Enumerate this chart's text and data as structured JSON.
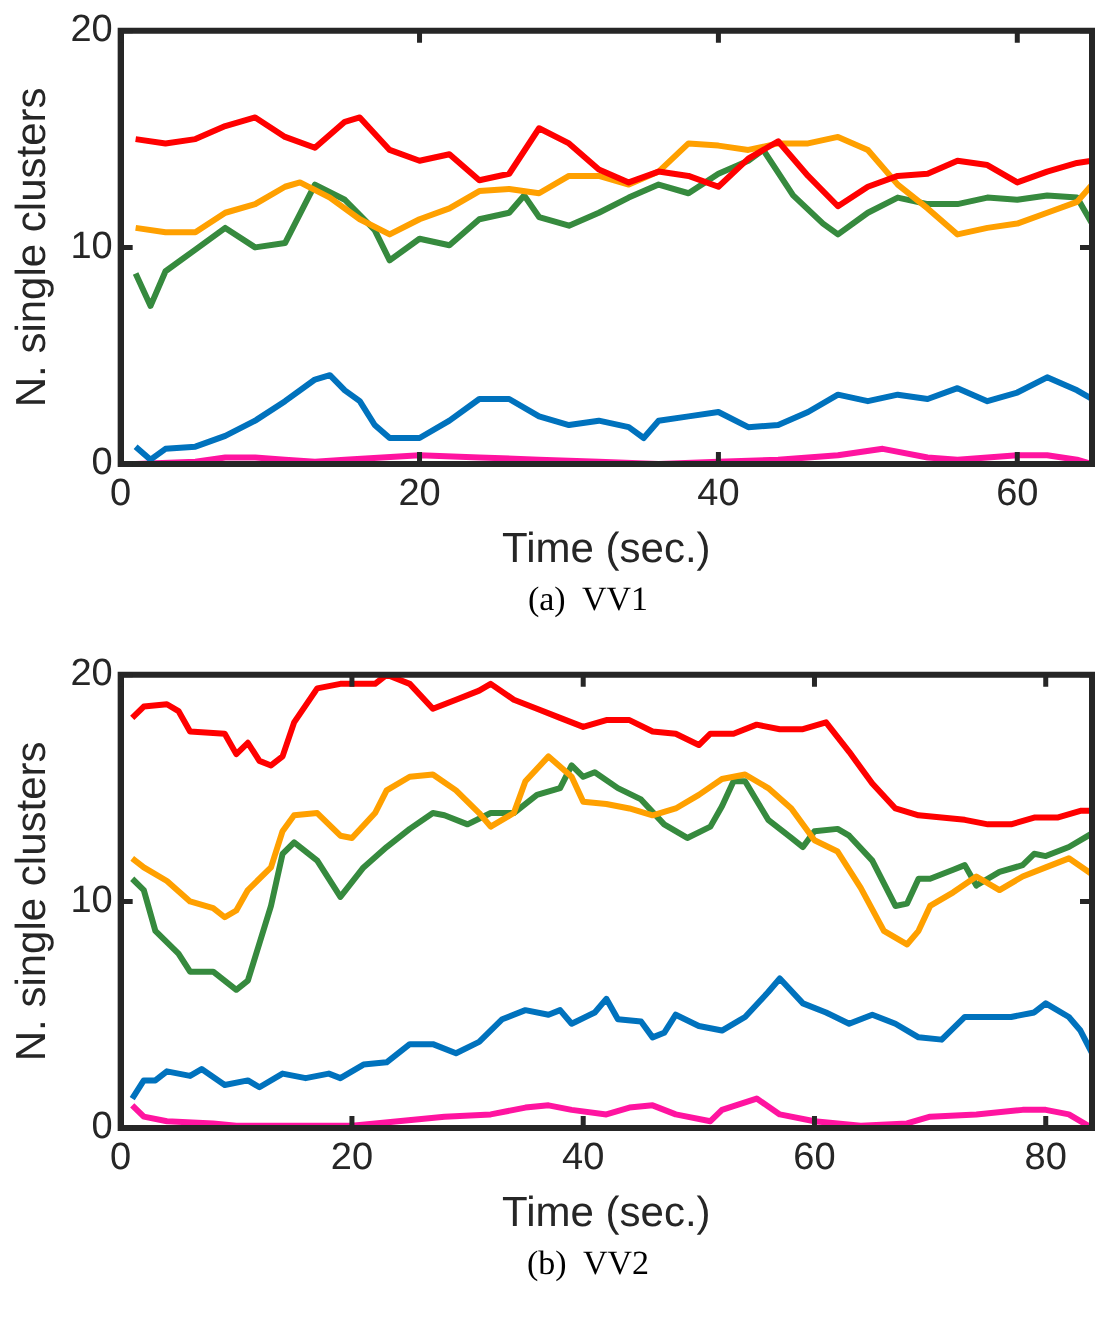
{
  "chart_data": [
    {
      "type": "line",
      "xlabel": "Time (sec.)",
      "ylabel": "N. single clusters",
      "annotations": [
        "(a)  VV1"
      ],
      "xlim": [
        0,
        65
      ],
      "ylim": [
        0,
        20
      ],
      "xticks": [
        0,
        20,
        40,
        60
      ],
      "yticks": [
        0,
        10,
        20
      ],
      "legend": false,
      "marker": "none",
      "line_style": "solid",
      "series": [
        {
          "color": "#ff0000",
          "x": [
            1,
            3,
            5,
            7,
            9,
            11,
            13,
            15,
            16,
            18,
            20,
            22,
            24,
            26,
            28,
            30,
            32,
            34,
            36,
            38,
            40,
            42,
            44,
            46,
            48,
            50,
            52,
            54,
            56,
            58,
            60,
            62,
            64,
            65
          ],
          "values": [
            15.0,
            14.8,
            15.0,
            15.6,
            16.0,
            15.1,
            14.6,
            15.8,
            16.0,
            14.5,
            14.0,
            14.3,
            13.1,
            13.4,
            15.5,
            14.8,
            13.6,
            13.0,
            13.5,
            13.3,
            12.8,
            14.1,
            14.9,
            13.3,
            11.9,
            12.8,
            13.3,
            13.4,
            14.0,
            13.8,
            13.0,
            13.5,
            13.9,
            14.0
          ]
        },
        {
          "color": "#ffa000",
          "x": [
            1,
            3,
            5,
            7,
            9,
            11,
            12,
            14,
            16,
            18,
            20,
            22,
            24,
            26,
            28,
            30,
            32,
            34,
            36,
            38,
            40,
            42,
            44,
            46,
            48,
            50,
            52,
            54,
            56,
            58,
            60,
            62,
            64,
            65
          ],
          "values": [
            10.9,
            10.7,
            10.7,
            11.6,
            12.0,
            12.8,
            13.0,
            12.3,
            11.3,
            10.6,
            11.3,
            11.8,
            12.6,
            12.7,
            12.5,
            13.3,
            13.3,
            12.9,
            13.5,
            14.8,
            14.7,
            14.5,
            14.8,
            14.8,
            15.1,
            14.5,
            12.9,
            11.8,
            10.6,
            10.9,
            11.1,
            11.6,
            12.1,
            12.9
          ]
        },
        {
          "color": "#368a3e",
          "x": [
            1,
            2,
            3,
            5,
            7,
            9,
            11,
            13,
            15,
            17,
            18,
            20,
            22,
            24,
            26,
            27,
            28,
            30,
            32,
            34,
            36,
            38,
            40,
            42,
            43,
            45,
            47,
            48,
            50,
            52,
            54,
            56,
            58,
            60,
            62,
            64,
            65
          ],
          "values": [
            8.8,
            7.3,
            8.9,
            9.9,
            10.9,
            10.0,
            10.2,
            12.9,
            12.2,
            10.8,
            9.4,
            10.4,
            10.1,
            11.3,
            11.6,
            12.4,
            11.4,
            11.0,
            11.6,
            12.3,
            12.9,
            12.5,
            13.4,
            14.0,
            14.5,
            12.4,
            11.1,
            10.6,
            11.6,
            12.3,
            12.0,
            12.0,
            12.3,
            12.2,
            12.4,
            12.3,
            11.1
          ]
        },
        {
          "color": "#0072bd",
          "x": [
            1,
            2,
            3,
            5,
            7,
            9,
            11,
            13,
            14,
            15,
            16,
            17,
            18,
            20,
            22,
            24,
            26,
            28,
            30,
            32,
            34,
            35,
            36,
            38,
            40,
            42,
            44,
            46,
            48,
            50,
            52,
            54,
            56,
            58,
            60,
            62,
            64,
            65
          ],
          "values": [
            0.8,
            0.2,
            0.7,
            0.8,
            1.3,
            2.0,
            2.9,
            3.9,
            4.1,
            3.4,
            2.9,
            1.8,
            1.2,
            1.2,
            2.0,
            3.0,
            3.0,
            2.2,
            1.8,
            2.0,
            1.7,
            1.2,
            2.0,
            2.2,
            2.4,
            1.7,
            1.8,
            2.4,
            3.2,
            2.9,
            3.2,
            3.0,
            3.5,
            2.9,
            3.3,
            4.0,
            3.4,
            3.0
          ]
        },
        {
          "color": "#ff14a0",
          "x": [
            1,
            5,
            7,
            9,
            11,
            13,
            15,
            20,
            24,
            28,
            32,
            36,
            40,
            44,
            48,
            51,
            54,
            56,
            60,
            62,
            64,
            65
          ],
          "values": [
            0,
            0.1,
            0.3,
            0.3,
            0.2,
            0.1,
            0.2,
            0.4,
            0.3,
            0.2,
            0.1,
            0,
            0.1,
            0.2,
            0.4,
            0.7,
            0.3,
            0.2,
            0.4,
            0.4,
            0.2,
            0
          ]
        }
      ]
    },
    {
      "type": "line",
      "xlabel": "Time (sec.)",
      "ylabel": "N. single clusters",
      "annotations": [
        "(b)  VV2"
      ],
      "xlim": [
        0,
        84
      ],
      "ylim": [
        0,
        20
      ],
      "xticks": [
        0,
        20,
        40,
        60,
        80
      ],
      "yticks": [
        0,
        10,
        20
      ],
      "legend": false,
      "marker": "none",
      "line_style": "solid",
      "series": [
        {
          "color": "#ff0000",
          "x": [
            1,
            2,
            4,
            5,
            6,
            9,
            10,
            11,
            12,
            13,
            14,
            15,
            17,
            19,
            22,
            23,
            25,
            27,
            29,
            31,
            32,
            34,
            36,
            38,
            40,
            42,
            44,
            46,
            48,
            50,
            51,
            53,
            55,
            57,
            59,
            61,
            63,
            65,
            67,
            69,
            71,
            73,
            75,
            77,
            79,
            81,
            83,
            84
          ],
          "values": [
            18.1,
            18.6,
            18.7,
            18.4,
            17.5,
            17.4,
            16.5,
            17.0,
            16.2,
            16.0,
            16.4,
            17.9,
            19.4,
            19.6,
            19.6,
            20.0,
            19.6,
            18.5,
            18.9,
            19.3,
            19.6,
            18.9,
            18.5,
            18.1,
            17.7,
            18.0,
            18.0,
            17.5,
            17.4,
            16.9,
            17.4,
            17.4,
            17.8,
            17.6,
            17.6,
            17.9,
            16.6,
            15.2,
            14.1,
            13.8,
            13.7,
            13.6,
            13.4,
            13.4,
            13.7,
            13.7,
            14.0,
            14.0
          ]
        },
        {
          "color": "#ffa000",
          "x": [
            1,
            2,
            4,
            6,
            8,
            9,
            10,
            11,
            13,
            14,
            15,
            17,
            19,
            20,
            22,
            23,
            25,
            27,
            29,
            31,
            32,
            34,
            35,
            37,
            39,
            40,
            42,
            44,
            46,
            48,
            50,
            52,
            54,
            56,
            58,
            60,
            62,
            64,
            66,
            68,
            69,
            70,
            72,
            74,
            76,
            78,
            80,
            82,
            84
          ],
          "values": [
            11.9,
            11.5,
            10.9,
            10.0,
            9.7,
            9.3,
            9.6,
            10.5,
            11.5,
            13.1,
            13.8,
            13.9,
            12.9,
            12.8,
            13.9,
            14.9,
            15.5,
            15.6,
            14.9,
            13.9,
            13.3,
            13.9,
            15.3,
            16.4,
            15.5,
            14.4,
            14.3,
            14.1,
            13.8,
            14.1,
            14.7,
            15.4,
            15.6,
            15.0,
            14.1,
            12.7,
            12.2,
            10.6,
            8.7,
            8.1,
            8.7,
            9.8,
            10.4,
            11.1,
            10.5,
            11.1,
            11.5,
            11.9,
            11.2
          ]
        },
        {
          "color": "#368a3e",
          "x": [
            1,
            2,
            3,
            5,
            6,
            8,
            10,
            11,
            13,
            14,
            15,
            17,
            19,
            21,
            23,
            25,
            27,
            28,
            30,
            32,
            34,
            36,
            38,
            39,
            40,
            41,
            43,
            45,
            47,
            49,
            51,
            52,
            53,
            54,
            56,
            58,
            59,
            60,
            62,
            63,
            65,
            67,
            68,
            69,
            70,
            72,
            73,
            74,
            76,
            78,
            79,
            80,
            82,
            84
          ],
          "values": [
            11.0,
            10.5,
            8.7,
            7.7,
            6.9,
            6.9,
            6.1,
            6.5,
            9.8,
            12.1,
            12.6,
            11.8,
            10.2,
            11.5,
            12.4,
            13.2,
            13.9,
            13.8,
            13.4,
            13.9,
            13.9,
            14.7,
            15.0,
            16.0,
            15.5,
            15.7,
            15.0,
            14.5,
            13.4,
            12.8,
            13.3,
            14.2,
            15.3,
            15.3,
            13.6,
            12.8,
            12.4,
            13.1,
            13.2,
            12.9,
            11.8,
            9.8,
            9.9,
            11.0,
            11.0,
            11.4,
            11.6,
            10.7,
            11.3,
            11.6,
            12.1,
            12.0,
            12.4,
            13.0
          ]
        },
        {
          "color": "#0072bd",
          "x": [
            1,
            2,
            3,
            4,
            6,
            7,
            9,
            11,
            12,
            14,
            16,
            18,
            19,
            21,
            23,
            25,
            27,
            29,
            31,
            33,
            35,
            37,
            38,
            39,
            41,
            42,
            43,
            45,
            46,
            47,
            48,
            50,
            52,
            54,
            56,
            57,
            59,
            61,
            63,
            65,
            67,
            69,
            71,
            73,
            75,
            77,
            79,
            80,
            82,
            83,
            84
          ],
          "values": [
            1.3,
            2.1,
            2.1,
            2.5,
            2.3,
            2.6,
            1.9,
            2.1,
            1.8,
            2.4,
            2.2,
            2.4,
            2.2,
            2.8,
            2.9,
            3.7,
            3.7,
            3.3,
            3.8,
            4.8,
            5.2,
            5.0,
            5.2,
            4.6,
            5.1,
            5.7,
            4.8,
            4.7,
            4.0,
            4.2,
            5.0,
            4.5,
            4.3,
            4.9,
            6.0,
            6.6,
            5.5,
            5.1,
            4.6,
            5.0,
            4.6,
            4.0,
            3.9,
            4.9,
            4.9,
            4.9,
            5.1,
            5.5,
            4.9,
            4.3,
            3.3
          ]
        },
        {
          "color": "#ff14a0",
          "x": [
            1,
            2,
            4,
            8,
            10,
            20,
            24,
            28,
            32,
            35,
            37,
            39,
            42,
            44,
            46,
            48,
            51,
            52,
            55,
            57,
            60,
            64,
            68,
            70,
            74,
            78,
            80,
            82,
            84
          ],
          "values": [
            1.0,
            0.5,
            0.3,
            0.2,
            0.1,
            0.1,
            0.3,
            0.5,
            0.6,
            0.9,
            1.0,
            0.8,
            0.6,
            0.9,
            1.0,
            0.6,
            0.3,
            0.8,
            1.3,
            0.6,
            0.3,
            0.1,
            0.2,
            0.5,
            0.6,
            0.8,
            0.8,
            0.6,
            0
          ]
        }
      ]
    }
  ]
}
